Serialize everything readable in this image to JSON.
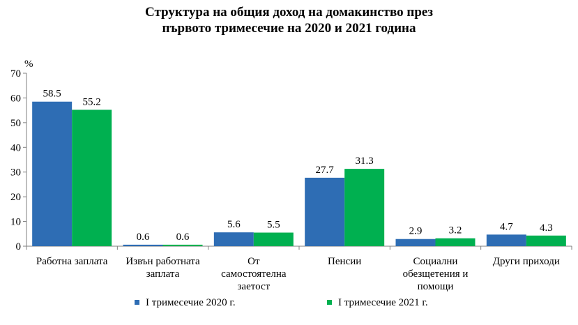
{
  "title_lines": [
    "Структура на общия доход на домакинство през",
    "първото тримесечие на 2020 и 2021 година"
  ],
  "chart_data": {
    "type": "bar",
    "title": "Структура на общия доход на домакинство през първото тримесечие на 2020 и 2021 година",
    "ylabel": "%",
    "ylim": [
      0,
      70
    ],
    "yticks": [
      0,
      10,
      20,
      30,
      40,
      50,
      60,
      70
    ],
    "grid": false,
    "legend_position": "bottom",
    "categories": [
      [
        "Работна заплата"
      ],
      [
        "Извън работната",
        "заплата"
      ],
      [
        "От",
        "самостоятелна",
        "заетост"
      ],
      [
        "Пенсии"
      ],
      [
        "Социални",
        "обезщетения и",
        "помощи"
      ],
      [
        "Други приходи"
      ]
    ],
    "series": [
      {
        "name": "I  тримесечие 2020 г.",
        "color": "#2e6db4",
        "values": [
          58.5,
          0.6,
          5.6,
          27.7,
          2.9,
          4.7
        ]
      },
      {
        "name": "I  тримесечие 2021 г.",
        "color": "#00b050",
        "values": [
          55.2,
          0.6,
          5.5,
          31.3,
          3.2,
          4.3
        ]
      }
    ]
  }
}
